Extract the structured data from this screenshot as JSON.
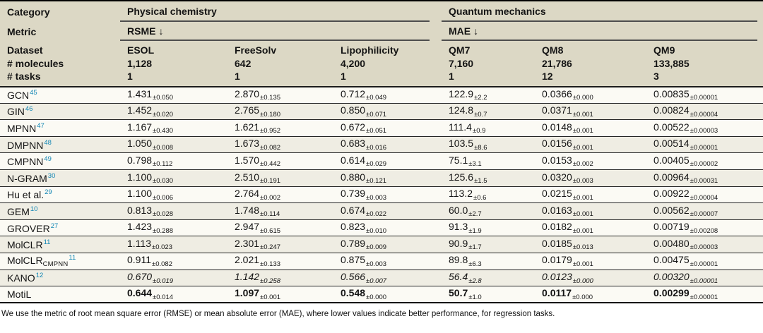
{
  "colors": {
    "header_bg": "#dcd8c5",
    "row_odd_bg": "#fbfaf4",
    "row_even_bg": "#efede3",
    "citation_link": "#1487b5",
    "text": "#141414",
    "rule_dark": "#000000",
    "rule_gray": "#4d4d4d"
  },
  "table": {
    "category_label": "Category",
    "metric_label": "Metric",
    "dataset_label": "Dataset",
    "molecules_label": "# molecules",
    "tasks_label": "# tasks",
    "groups": [
      {
        "name": "Physical chemistry",
        "metric_name": "RSME",
        "metric_arrow": "↓",
        "datasets": [
          {
            "name": "ESOL",
            "molecules": "1,128",
            "tasks": "1"
          },
          {
            "name": "FreeSolv",
            "molecules": "642",
            "tasks": "1"
          },
          {
            "name": "Lipophilicity",
            "molecules": "4,200",
            "tasks": "1"
          }
        ]
      },
      {
        "name": "Quantum mechanics",
        "metric_name": "MAE",
        "metric_arrow": "↓",
        "datasets": [
          {
            "name": "QM7",
            "molecules": "7,160",
            "tasks": "1"
          },
          {
            "name": "QM8",
            "molecules": "21,786",
            "tasks": "12"
          },
          {
            "name": "QM9",
            "molecules": "133,885",
            "tasks": "3"
          }
        ]
      }
    ],
    "rows": [
      {
        "method": "GCN",
        "method_subscript": "",
        "ref": "45",
        "emphasis": "none",
        "values": [
          {
            "v": "1.431",
            "e": "±0.050"
          },
          {
            "v": "2.870",
            "e": "±0.135"
          },
          {
            "v": "0.712",
            "e": "±0.049"
          },
          {
            "v": "122.9",
            "e": "±2.2"
          },
          {
            "v": "0.0366",
            "e": "±0.000"
          },
          {
            "v": "0.00835",
            "e": "±0.00001"
          }
        ]
      },
      {
        "method": "GIN",
        "method_subscript": "",
        "ref": "46",
        "emphasis": "none",
        "values": [
          {
            "v": "1.452",
            "e": "±0.020"
          },
          {
            "v": "2.765",
            "e": "±0.180"
          },
          {
            "v": "0.850",
            "e": "±0.071"
          },
          {
            "v": "124.8",
            "e": "±0.7"
          },
          {
            "v": "0.0371",
            "e": "±0.001"
          },
          {
            "v": "0.00824",
            "e": "±0.00004"
          }
        ]
      },
      {
        "method": "MPNN",
        "method_subscript": "",
        "ref": "47",
        "emphasis": "none",
        "values": [
          {
            "v": "1.167",
            "e": "±0.430"
          },
          {
            "v": "1.621",
            "e": "±0.952"
          },
          {
            "v": "0.672",
            "e": "±0.051"
          },
          {
            "v": "111.4",
            "e": "±0.9"
          },
          {
            "v": "0.0148",
            "e": "±0.001"
          },
          {
            "v": "0.00522",
            "e": "±0.00003"
          }
        ]
      },
      {
        "method": "DMPNN",
        "method_subscript": "",
        "ref": "48",
        "emphasis": "none",
        "values": [
          {
            "v": "1.050",
            "e": "±0.008"
          },
          {
            "v": "1.673",
            "e": "±0.082"
          },
          {
            "v": "0.683",
            "e": "±0.016"
          },
          {
            "v": "103.5",
            "e": "±8.6"
          },
          {
            "v": "0.0156",
            "e": "±0.001"
          },
          {
            "v": "0.00514",
            "e": "±0.00001"
          }
        ]
      },
      {
        "method": "CMPNN",
        "method_subscript": "",
        "ref": "49",
        "emphasis": "none",
        "values": [
          {
            "v": "0.798",
            "e": "±0.112"
          },
          {
            "v": "1.570",
            "e": "±0.442"
          },
          {
            "v": "0.614",
            "e": "±0.029"
          },
          {
            "v": "75.1",
            "e": "±3.1"
          },
          {
            "v": "0.0153",
            "e": "±0.002"
          },
          {
            "v": "0.00405",
            "e": "±0.00002"
          }
        ]
      },
      {
        "method": "N-GRAM",
        "method_subscript": "",
        "ref": "30",
        "emphasis": "none",
        "values": [
          {
            "v": "1.100",
            "e": "±0.030"
          },
          {
            "v": "2.510",
            "e": "±0.191"
          },
          {
            "v": "0.880",
            "e": "±0.121"
          },
          {
            "v": "125.6",
            "e": "±1.5"
          },
          {
            "v": "0.0320",
            "e": "±0.003"
          },
          {
            "v": "0.00964",
            "e": "±0.00031"
          }
        ]
      },
      {
        "method": "Hu et al.",
        "method_subscript": "",
        "ref": "29",
        "emphasis": "none",
        "values": [
          {
            "v": "1.100",
            "e": "±0.006"
          },
          {
            "v": "2.764",
            "e": "±0.002"
          },
          {
            "v": "0.739",
            "e": "±0.003"
          },
          {
            "v": "113.2",
            "e": "±0.6"
          },
          {
            "v": "0.0215",
            "e": "±0.001"
          },
          {
            "v": "0.00922",
            "e": "±0.00004"
          }
        ]
      },
      {
        "method": "GEM",
        "method_subscript": "",
        "ref": "10",
        "emphasis": "none",
        "values": [
          {
            "v": "0.813",
            "e": "±0.028"
          },
          {
            "v": "1.748",
            "e": "±0.114"
          },
          {
            "v": "0.674",
            "e": "±0.022"
          },
          {
            "v": "60.0",
            "e": "±2.7"
          },
          {
            "v": "0.0163",
            "e": "±0.001"
          },
          {
            "v": "0.00562",
            "e": "±0.00007"
          }
        ]
      },
      {
        "method": "GROVER",
        "method_subscript": "",
        "ref": "27",
        "emphasis": "none",
        "values": [
          {
            "v": "1.423",
            "e": "±0.288"
          },
          {
            "v": "2.947",
            "e": "±0.615"
          },
          {
            "v": "0.823",
            "e": "±0.010"
          },
          {
            "v": "91.3",
            "e": "±1.9"
          },
          {
            "v": "0.0182",
            "e": "±0.001"
          },
          {
            "v": "0.00719",
            "e": "±0.00208"
          }
        ]
      },
      {
        "method": "MolCLR",
        "method_subscript": "",
        "ref": "11",
        "emphasis": "none",
        "values": [
          {
            "v": "1.113",
            "e": "±0.023"
          },
          {
            "v": "2.301",
            "e": "±0.247"
          },
          {
            "v": "0.789",
            "e": "±0.009"
          },
          {
            "v": "90.9",
            "e": "±1.7"
          },
          {
            "v": "0.0185",
            "e": "±0.013"
          },
          {
            "v": "0.00480",
            "e": "±0.00003"
          }
        ]
      },
      {
        "method": "MolCLR",
        "method_subscript": "CMPNN",
        "ref": "11",
        "emphasis": "none",
        "values": [
          {
            "v": "0.911",
            "e": "±0.082"
          },
          {
            "v": "2.021",
            "e": "±0.133"
          },
          {
            "v": "0.875",
            "e": "±0.003"
          },
          {
            "v": "89.8",
            "e": "±6.3"
          },
          {
            "v": "0.0179",
            "e": "±0.001"
          },
          {
            "v": "0.00475",
            "e": "±0.00001"
          }
        ]
      },
      {
        "method": "KANO",
        "method_subscript": "",
        "ref": "12",
        "emphasis": "italic",
        "values": [
          {
            "v": "0.670",
            "e": "±0.019"
          },
          {
            "v": "1.142",
            "e": "±0.258"
          },
          {
            "v": "0.566",
            "e": "±0.007"
          },
          {
            "v": "56.4",
            "e": "±2.8"
          },
          {
            "v": "0.0123",
            "e": "±0.000"
          },
          {
            "v": "0.00320",
            "e": "±0.00001"
          }
        ]
      },
      {
        "method": "MotiL",
        "method_subscript": "",
        "ref": "",
        "emphasis": "bold",
        "values": [
          {
            "v": "0.644",
            "e": "±0.014"
          },
          {
            "v": "1.097",
            "e": "±0.001"
          },
          {
            "v": "0.548",
            "e": "±0.000"
          },
          {
            "v": "50.7",
            "e": "±1.0"
          },
          {
            "v": "0.0117",
            "e": "±0.000"
          },
          {
            "v": "0.00299",
            "e": "±0.00001"
          }
        ]
      }
    ],
    "footnote": "We use the metric of root mean square error (RMSE) or mean absolute error (MAE), where lower values indicate better performance, for regression tasks."
  }
}
